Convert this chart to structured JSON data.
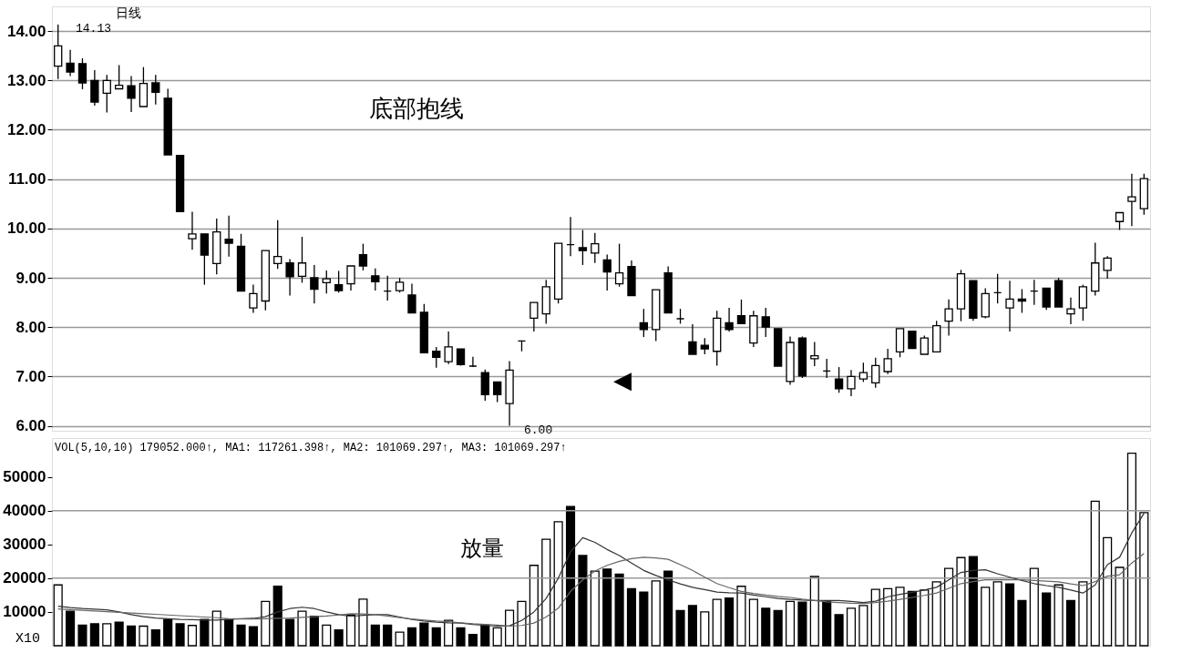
{
  "chart_data": [
    {
      "type": "candlestick",
      "title": "日线",
      "categories": [
        null,
        null,
        null,
        null,
        null,
        null,
        null,
        null,
        null,
        null,
        null,
        null,
        null,
        null,
        null,
        null,
        null,
        null,
        null,
        null,
        null,
        null,
        null,
        null,
        null,
        null,
        null,
        null,
        null,
        null,
        null,
        null,
        null,
        null,
        null,
        null,
        null,
        null,
        null,
        null,
        null,
        null,
        null,
        null,
        null,
        null,
        null,
        null,
        null,
        null,
        null,
        null,
        null,
        null,
        null,
        null,
        null,
        null,
        null,
        null,
        null,
        null,
        null,
        null,
        null,
        null,
        null,
        null,
        null,
        null,
        null,
        null,
        null,
        null,
        null,
        null,
        null,
        null,
        null,
        null,
        null,
        null,
        null,
        null,
        null,
        null,
        null,
        null,
        null,
        null
      ],
      "ohlc": [
        [
          13.29,
          14.13,
          13.03,
          13.7
        ],
        [
          13.35,
          13.62,
          13.09,
          13.17
        ],
        [
          13.34,
          13.45,
          12.82,
          12.95
        ],
        [
          13.0,
          13.21,
          12.49,
          12.56
        ],
        [
          12.74,
          13.11,
          12.35,
          13.0
        ],
        [
          12.83,
          13.31,
          12.83,
          12.9
        ],
        [
          12.89,
          13.09,
          12.36,
          12.64
        ],
        [
          12.47,
          13.27,
          12.47,
          12.94
        ],
        [
          12.95,
          13.11,
          12.51,
          12.76
        ],
        [
          12.64,
          12.83,
          11.49,
          11.49
        ],
        [
          11.48,
          11.48,
          10.34,
          10.34
        ],
        [
          9.79,
          10.34,
          9.57,
          9.89
        ],
        [
          9.89,
          9.89,
          8.86,
          9.46
        ],
        [
          9.29,
          10.2,
          9.07,
          9.93
        ],
        [
          9.78,
          10.26,
          9.43,
          9.7
        ],
        [
          9.64,
          9.89,
          8.73,
          8.73
        ],
        [
          8.39,
          8.86,
          8.29,
          8.68
        ],
        [
          8.53,
          9.55,
          8.34,
          9.55
        ],
        [
          9.29,
          10.17,
          9.18,
          9.43
        ],
        [
          9.3,
          9.38,
          8.64,
          9.02
        ],
        [
          9.03,
          9.83,
          8.9,
          9.3
        ],
        [
          9.0,
          9.26,
          8.48,
          8.77
        ],
        [
          8.9,
          9.15,
          8.68,
          8.98
        ],
        [
          8.86,
          9.14,
          8.7,
          8.74
        ],
        [
          8.88,
          9.24,
          8.74,
          9.24
        ],
        [
          9.47,
          9.69,
          9.15,
          9.24
        ],
        [
          9.04,
          9.19,
          8.74,
          8.92
        ],
        [
          8.73,
          9.04,
          8.54,
          8.73
        ],
        [
          8.74,
          9.0,
          8.7,
          8.91
        ],
        [
          8.65,
          8.88,
          8.29,
          8.29
        ],
        [
          8.3,
          8.47,
          7.48,
          7.48
        ],
        [
          7.51,
          7.6,
          7.18,
          7.39
        ],
        [
          7.3,
          7.91,
          7.25,
          7.6
        ],
        [
          7.56,
          7.56,
          7.22,
          7.24
        ],
        [
          7.21,
          7.4,
          7.19,
          7.21
        ],
        [
          7.08,
          7.14,
          6.51,
          6.63
        ],
        [
          6.89,
          6.89,
          6.48,
          6.63
        ],
        [
          6.45,
          7.31,
          6.0,
          7.13
        ],
        [
          7.72,
          7.72,
          7.51,
          7.72
        ],
        [
          8.18,
          8.5,
          7.91,
          8.5
        ],
        [
          8.27,
          8.96,
          8.07,
          8.82
        ],
        [
          8.57,
          9.7,
          8.48,
          9.7
        ],
        [
          9.67,
          10.23,
          9.44,
          9.67
        ],
        [
          9.61,
          9.97,
          9.26,
          9.55
        ],
        [
          9.5,
          9.91,
          9.3,
          9.69
        ],
        [
          9.36,
          9.47,
          8.74,
          9.12
        ],
        [
          8.88,
          9.69,
          8.82,
          9.1
        ],
        [
          9.23,
          9.35,
          8.64,
          8.64
        ],
        [
          8.09,
          8.37,
          7.8,
          7.95
        ],
        [
          7.95,
          8.76,
          7.72,
          8.76
        ],
        [
          9.1,
          9.23,
          8.29,
          8.29
        ],
        [
          8.17,
          8.37,
          8.07,
          8.17
        ],
        [
          7.7,
          8.06,
          7.45,
          7.45
        ],
        [
          7.63,
          7.78,
          7.45,
          7.56
        ],
        [
          7.51,
          8.33,
          7.22,
          8.18
        ],
        [
          8.09,
          8.39,
          7.91,
          7.95
        ],
        [
          8.23,
          8.56,
          8.07,
          8.07
        ],
        [
          7.68,
          8.33,
          7.6,
          8.23
        ],
        [
          8.21,
          8.39,
          7.8,
          8.0
        ],
        [
          7.97,
          7.97,
          7.21,
          7.21
        ],
        [
          6.9,
          7.81,
          6.83,
          7.69
        ],
        [
          7.78,
          7.81,
          6.97,
          7.01
        ],
        [
          7.36,
          7.7,
          7.21,
          7.42
        ],
        [
          7.11,
          7.36,
          6.97,
          7.11
        ],
        [
          6.95,
          7.19,
          6.67,
          6.75
        ],
        [
          6.75,
          7.13,
          6.6,
          7.0
        ],
        [
          6.95,
          7.28,
          6.89,
          7.08
        ],
        [
          6.87,
          7.38,
          6.77,
          7.22
        ],
        [
          7.1,
          7.56,
          7.05,
          7.36
        ],
        [
          7.5,
          7.97,
          7.39,
          7.97
        ],
        [
          7.92,
          7.92,
          7.56,
          7.57
        ],
        [
          7.45,
          7.83,
          7.45,
          7.78
        ],
        [
          7.5,
          8.13,
          7.5,
          8.03
        ],
        [
          8.12,
          8.56,
          7.83,
          8.37
        ],
        [
          8.37,
          9.16,
          8.12,
          9.08
        ],
        [
          8.94,
          8.94,
          8.13,
          8.18
        ],
        [
          8.21,
          8.79,
          8.18,
          8.68
        ],
        [
          8.7,
          9.08,
          8.48,
          8.7
        ],
        [
          8.39,
          8.94,
          7.91,
          8.57
        ],
        [
          8.57,
          8.77,
          8.29,
          8.53
        ],
        [
          8.73,
          8.96,
          8.45,
          8.73
        ],
        [
          8.79,
          8.79,
          8.35,
          8.41
        ],
        [
          8.94,
          9.0,
          8.41,
          8.41
        ],
        [
          8.27,
          8.6,
          8.06,
          8.37
        ],
        [
          8.39,
          8.86,
          8.13,
          8.82
        ],
        [
          8.73,
          9.71,
          8.64,
          9.3
        ],
        [
          9.15,
          9.44,
          8.98,
          9.4
        ],
        [
          10.14,
          10.32,
          9.97,
          10.32
        ],
        [
          10.55,
          11.11,
          10.05,
          10.64
        ],
        [
          10.4,
          11.11,
          10.28,
          11.01
        ]
      ],
      "ylim": [
        5.9,
        14.5
      ],
      "yticks": [
        {
          "value": 6,
          "label": "6.00"
        },
        {
          "value": 7,
          "label": "7.00"
        },
        {
          "value": 8,
          "label": "8.00"
        },
        {
          "value": 9,
          "label": "9.00"
        },
        {
          "value": 10,
          "label": "10.00"
        },
        {
          "value": 11,
          "label": "11.00"
        },
        {
          "value": 12,
          "label": "12.00"
        },
        {
          "value": 13,
          "label": "13.00"
        },
        {
          "value": 14,
          "label": "14.00"
        }
      ],
      "grid": "y",
      "tick_labels": "y",
      "annotations": [
        "底部抱线",
        "14.13",
        "6.00",
        "◀"
      ]
    },
    {
      "type": "bar",
      "categories": [
        null,
        null,
        null,
        null,
        null,
        null,
        null,
        null,
        null,
        null,
        null,
        null,
        null,
        null,
        null,
        null,
        null,
        null,
        null,
        null,
        null,
        null,
        null,
        null,
        null,
        null,
        null,
        null,
        null,
        null,
        null,
        null,
        null,
        null,
        null,
        null,
        null,
        null,
        null,
        null,
        null,
        null,
        null,
        null,
        null,
        null,
        null,
        null,
        null,
        null,
        null,
        null,
        null,
        null,
        null,
        null,
        null,
        null,
        null,
        null,
        null,
        null,
        null,
        null,
        null,
        null,
        null,
        null,
        null,
        null,
        null,
        null,
        null,
        null,
        null,
        null,
        null,
        null,
        null,
        null,
        null,
        null,
        null,
        null,
        null,
        null,
        null,
        null,
        null,
        null
      ],
      "series": [
        {
          "type": "bar",
          "values": [
            18000,
            10200,
            6100,
            6500,
            6500,
            7000,
            5800,
            5800,
            4700,
            7800,
            6500,
            6000,
            7800,
            10200,
            7800,
            6100,
            5600,
            13100,
            17600,
            7800,
            10200,
            8700,
            6100,
            4700,
            9100,
            13800,
            6100,
            6100,
            4000,
            5300,
            6700,
            5300,
            7500,
            5300,
            3300,
            6100,
            5300,
            10500,
            13100,
            23800,
            31500,
            36700,
            41200,
            26700,
            22100,
            22700,
            21200,
            16900,
            15900,
            19200,
            22100,
            10400,
            11900,
            10000,
            13700,
            14100,
            17600,
            13700,
            11100,
            10400,
            13100,
            12900,
            20500,
            13100,
            9200,
            11100,
            11900,
            16700,
            16900,
            17300,
            16100,
            16500,
            18900,
            22900,
            26100,
            26400,
            17300,
            18900,
            18300,
            13400,
            22900,
            15600,
            18000,
            13400,
            18900,
            42800,
            32000,
            23200,
            57000,
            39400
          ],
          "colors": [
            "#ffffff",
            "#000000",
            "#000000",
            "#000000",
            "#ffffff",
            "#000000",
            "#000000",
            "#ffffff",
            "#000000",
            "#000000",
            "#000000",
            "#ffffff",
            "#000000",
            "#ffffff",
            "#000000",
            "#000000",
            "#000000",
            "#ffffff",
            "#000000",
            "#000000",
            "#ffffff",
            "#000000",
            "#ffffff",
            "#000000",
            "#ffffff",
            "#ffffff",
            "#000000",
            "#000000",
            "#ffffff",
            "#000000",
            "#000000",
            "#000000",
            "#ffffff",
            "#000000",
            "#000000",
            "#000000",
            "#ffffff",
            "#ffffff",
            "#ffffff",
            "#ffffff",
            "#ffffff",
            "#ffffff",
            "#000000",
            "#000000",
            "#ffffff",
            "#000000",
            "#000000",
            "#000000",
            "#000000",
            "#ffffff",
            "#000000",
            "#000000",
            "#000000",
            "#ffffff",
            "#ffffff",
            "#000000",
            "#ffffff",
            "#ffffff",
            "#000000",
            "#000000",
            "#ffffff",
            "#000000",
            "#ffffff",
            "#000000",
            "#000000",
            "#ffffff",
            "#ffffff",
            "#ffffff",
            "#ffffff",
            "#ffffff",
            "#000000",
            "#ffffff",
            "#ffffff",
            "#ffffff",
            "#ffffff",
            "#000000",
            "#ffffff",
            "#ffffff",
            "#000000",
            "#000000",
            "#ffffff",
            "#000000",
            "#ffffff",
            "#000000",
            "#ffffff",
            "#ffffff",
            "#ffffff",
            "#ffffff",
            "#ffffff",
            "#ffffff"
          ]
        },
        {
          "type": "line",
          "color": "#333333",
          "values": [
            11700,
            11300,
            11000,
            10800,
            10600,
            10000,
            9200,
            8600,
            8200,
            8000,
            7800,
            7700,
            7600,
            7600,
            7800,
            8000,
            8100,
            8600,
            10000,
            11000,
            11400,
            11000,
            10000,
            9200,
            8700,
            9000,
            9200,
            9200,
            8500,
            7800,
            7300,
            7000,
            6800,
            6700,
            6300,
            6000,
            5800,
            5900,
            7500,
            10000,
            14000,
            20000,
            27800,
            32000,
            30600,
            28500,
            26700,
            24500,
            22300,
            20800,
            19500,
            18300,
            17300,
            16600,
            15900,
            15700,
            15600,
            15000,
            14500,
            14000,
            13700,
            13500,
            13400,
            13400,
            13400,
            13100,
            12800,
            13200,
            14500,
            15200,
            15800,
            16500,
            17300,
            19500,
            21700,
            22300,
            22500,
            21300,
            20300,
            19300,
            18400,
            17800,
            17300,
            16500,
            15600,
            18000,
            24000,
            26200,
            33400,
            39200
          ]
        },
        {
          "type": "line",
          "color": "#666666",
          "values": [
            10900,
            10700,
            10500,
            10300,
            10100,
            9900,
            9700,
            9500,
            9300,
            9100,
            8900,
            8700,
            8500,
            8300,
            8000,
            7900,
            7900,
            8000,
            8100,
            8200,
            8400,
            8600,
            8800,
            9100,
            9500,
            9400,
            9200,
            8800,
            8300,
            7900,
            7600,
            7300,
            7100,
            6800,
            6500,
            6300,
            6100,
            5800,
            6000,
            6700,
            8500,
            11100,
            16100,
            19500,
            22100,
            23800,
            25000,
            25800,
            26200,
            26000,
            25600,
            24000,
            22300,
            20300,
            18400,
            17200,
            16100,
            15500,
            15000,
            14600,
            14300,
            13800,
            13400,
            13000,
            12800,
            12600,
            12500,
            12800,
            13200,
            13700,
            14300,
            14900,
            15600,
            17000,
            18400,
            19000,
            19500,
            19500,
            19500,
            19500,
            19300,
            19100,
            18900,
            18300,
            17800,
            19000,
            20600,
            21000,
            24500,
            27300
          ]
        }
      ],
      "ylim": [
        0,
        61500
      ],
      "yticks": [
        10000,
        20000,
        30000,
        40000,
        50000
      ],
      "grid": false,
      "tick_labels": "y",
      "ref_lines": [
        {
          "axis": "y",
          "value": 20000,
          "color": "#999999"
        },
        {
          "axis": "y",
          "value": 40000,
          "color": "#999999"
        }
      ],
      "annotations": [
        "VOL(5,10,10) 179052.000↑, MA1: 117261.398↑, MA2: 101069.297↑, MA3: 101069.297↑",
        "放量",
        "X10"
      ]
    }
  ]
}
